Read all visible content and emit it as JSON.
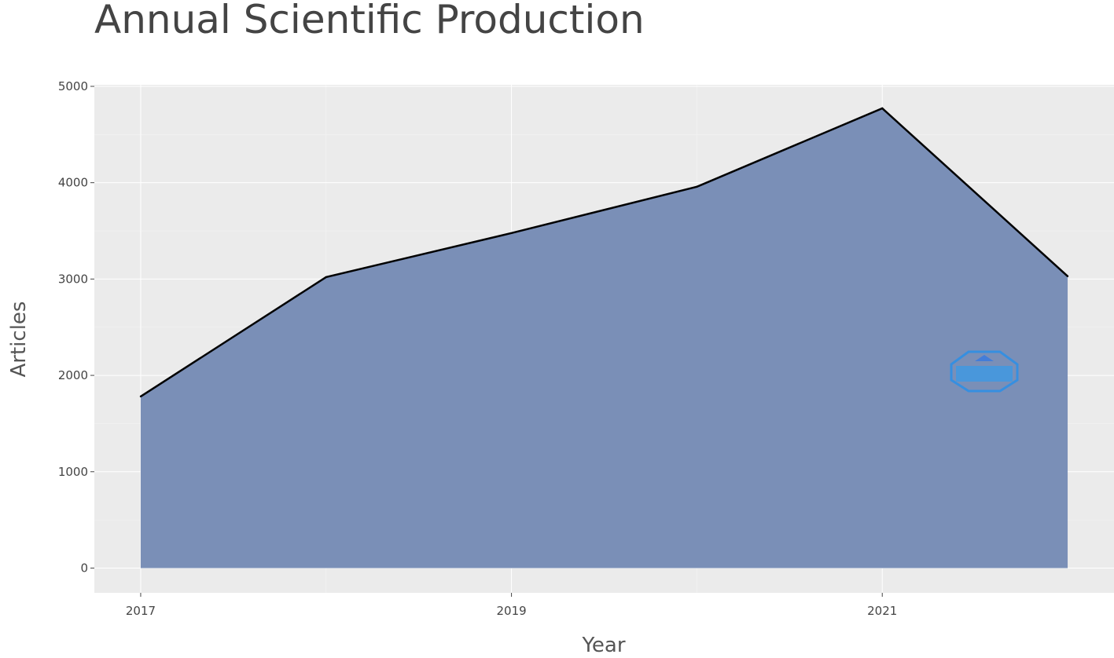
{
  "chart_data": {
    "type": "area",
    "title": "Annual Scientific Production",
    "xlabel": "Year",
    "ylabel": "Articles",
    "x": [
      2017,
      2018,
      2019,
      2020,
      2021,
      2022
    ],
    "values": [
      1781,
      3020,
      3477,
      3958,
      4772,
      3029
    ],
    "xticks": [
      2017,
      2019,
      2021
    ],
    "yticks": [
      0,
      1000,
      2000,
      3000,
      4000,
      5000
    ],
    "xlim": [
      2016.75,
      2022.25
    ],
    "ylim": [
      -257,
      5016
    ],
    "grid": true,
    "legend": "none",
    "colors": {
      "fill": "#7a8fb7",
      "line": "#000000",
      "panel": "#ebebeb",
      "grid": "#ffffff"
    }
  }
}
